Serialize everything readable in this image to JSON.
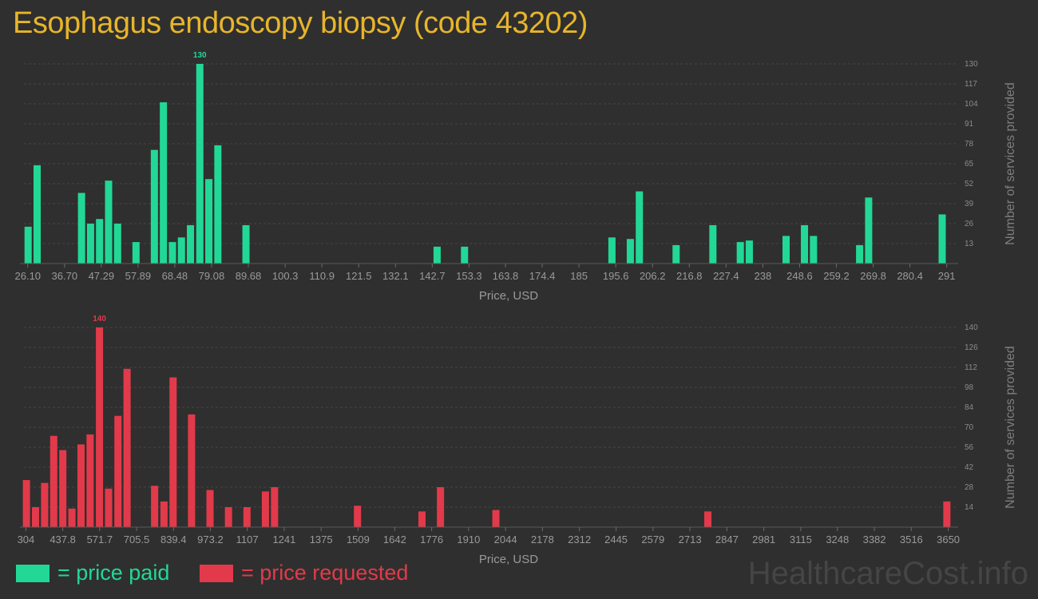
{
  "title": "Esophagus endoscopy biopsy (code 43202)",
  "colors": {
    "paid": "#22d896",
    "requested": "#e23a4a",
    "title": "#e8b52a"
  },
  "legend": {
    "paid": "= price paid",
    "requested": "= price requested"
  },
  "watermark": "HealthcareCost.info",
  "chart_data": [
    {
      "type": "bar",
      "series": [
        {
          "name": "price paid",
          "color": "#22d896"
        }
      ],
      "xlabel": "Price, USD",
      "ylabel": "Number of services provided",
      "xlim": [
        25,
        292
      ],
      "ylim": [
        0,
        130
      ],
      "max_label": "130",
      "xtick_labels": [
        "26.10",
        "36.70",
        "47.29",
        "57.89",
        "68.48",
        "79.08",
        "89.68",
        "100.3",
        "110.9",
        "121.5",
        "132.1",
        "142.7",
        "153.3",
        "163.8",
        "174.4",
        "185",
        "195.6",
        "206.2",
        "216.8",
        "227.4",
        "238",
        "248.6",
        "259.2",
        "269.8",
        "280.4",
        "291"
      ],
      "xtick_values": [
        26.1,
        36.7,
        47.29,
        57.89,
        68.48,
        79.08,
        89.68,
        100.3,
        110.9,
        121.5,
        132.1,
        142.7,
        153.3,
        163.8,
        174.4,
        185,
        195.6,
        206.2,
        216.8,
        227.4,
        238,
        248.6,
        259.2,
        269.8,
        280.4,
        291
      ],
      "yticks": [
        13,
        26,
        39,
        52,
        65,
        78,
        91,
        104,
        117,
        130
      ],
      "bars": [
        {
          "x": 26.2,
          "y": 24
        },
        {
          "x": 28.8,
          "y": 64
        },
        {
          "x": 41.6,
          "y": 46
        },
        {
          "x": 44.2,
          "y": 26
        },
        {
          "x": 46.8,
          "y": 29
        },
        {
          "x": 49.4,
          "y": 54
        },
        {
          "x": 52.0,
          "y": 26
        },
        {
          "x": 57.3,
          "y": 14
        },
        {
          "x": 62.6,
          "y": 74
        },
        {
          "x": 65.2,
          "y": 105
        },
        {
          "x": 67.8,
          "y": 14
        },
        {
          "x": 70.4,
          "y": 17
        },
        {
          "x": 73.0,
          "y": 25
        },
        {
          "x": 75.7,
          "y": 130
        },
        {
          "x": 78.3,
          "y": 55
        },
        {
          "x": 80.9,
          "y": 77
        },
        {
          "x": 89.0,
          "y": 25
        },
        {
          "x": 144.1,
          "y": 11
        },
        {
          "x": 152.0,
          "y": 11
        },
        {
          "x": 194.5,
          "y": 17
        },
        {
          "x": 199.8,
          "y": 16
        },
        {
          "x": 202.4,
          "y": 47
        },
        {
          "x": 213.0,
          "y": 12
        },
        {
          "x": 223.6,
          "y": 25
        },
        {
          "x": 231.5,
          "y": 14
        },
        {
          "x": 234.1,
          "y": 15
        },
        {
          "x": 244.7,
          "y": 18
        },
        {
          "x": 250.0,
          "y": 25
        },
        {
          "x": 252.6,
          "y": 18
        },
        {
          "x": 265.9,
          "y": 12
        },
        {
          "x": 268.5,
          "y": 43
        },
        {
          "x": 289.7,
          "y": 32
        }
      ]
    },
    {
      "type": "bar",
      "series": [
        {
          "name": "price requested",
          "color": "#e23a4a"
        }
      ],
      "xlabel": "Price, USD",
      "ylabel": "Number of services provided",
      "xlim": [
        297,
        3657
      ],
      "ylim": [
        0,
        140
      ],
      "max_label": "140",
      "xtick_labels": [
        "304",
        "437.8",
        "571.7",
        "705.5",
        "839.4",
        "973.2",
        "1107",
        "1241",
        "1375",
        "1509",
        "1642",
        "1776",
        "1910",
        "2044",
        "2178",
        "2312",
        "2445",
        "2579",
        "2713",
        "2847",
        "2981",
        "3115",
        "3248",
        "3382",
        "3516",
        "3650"
      ],
      "xtick_values": [
        304,
        437.8,
        571.7,
        705.5,
        839.4,
        973.2,
        1107,
        1241,
        1375,
        1509,
        1642,
        1776,
        1910,
        2044,
        2178,
        2312,
        2445,
        2579,
        2713,
        2847,
        2981,
        3115,
        3248,
        3382,
        3516,
        3650
      ],
      "yticks": [
        14,
        28,
        42,
        56,
        70,
        84,
        98,
        112,
        126,
        140
      ],
      "bars": [
        {
          "x": 306,
          "y": 33
        },
        {
          "x": 339,
          "y": 14
        },
        {
          "x": 372,
          "y": 31
        },
        {
          "x": 405,
          "y": 64
        },
        {
          "x": 438,
          "y": 54
        },
        {
          "x": 471,
          "y": 13
        },
        {
          "x": 504,
          "y": 58
        },
        {
          "x": 537,
          "y": 65
        },
        {
          "x": 571,
          "y": 140
        },
        {
          "x": 604,
          "y": 27
        },
        {
          "x": 638,
          "y": 78
        },
        {
          "x": 671,
          "y": 111
        },
        {
          "x": 771,
          "y": 29
        },
        {
          "x": 805,
          "y": 18
        },
        {
          "x": 838,
          "y": 105
        },
        {
          "x": 905,
          "y": 79
        },
        {
          "x": 972,
          "y": 26
        },
        {
          "x": 1039,
          "y": 14
        },
        {
          "x": 1106,
          "y": 14
        },
        {
          "x": 1173,
          "y": 25
        },
        {
          "x": 1206,
          "y": 28
        },
        {
          "x": 1507,
          "y": 15
        },
        {
          "x": 1741,
          "y": 11
        },
        {
          "x": 1808,
          "y": 28
        },
        {
          "x": 2009,
          "y": 12
        },
        {
          "x": 2778,
          "y": 11
        },
        {
          "x": 3645,
          "y": 18
        }
      ]
    }
  ]
}
